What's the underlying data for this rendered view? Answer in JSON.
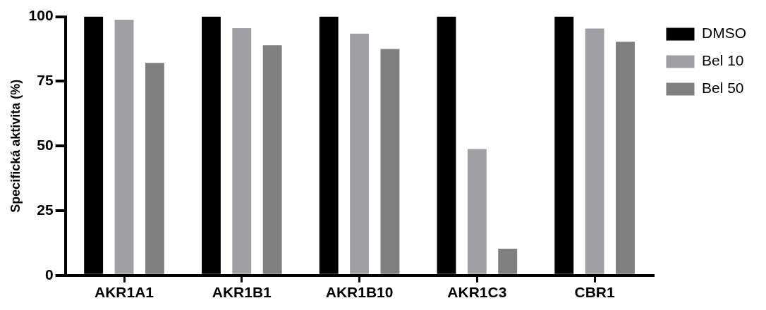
{
  "chart_data": {
    "type": "bar",
    "ylabel": "Specifická aktivita (%)",
    "categories": [
      "AKR1A1",
      "AKR1B1",
      "AKR1B10",
      "AKR1C3",
      "CBR1"
    ],
    "series": [
      {
        "name": "DMSO",
        "color": "#000000",
        "values": [
          100,
          100,
          100,
          100,
          100
        ]
      },
      {
        "name": "Bel 10",
        "color": "#a0a0a4",
        "values": [
          98.8,
          95.5,
          93.4,
          48.8,
          95.4
        ]
      },
      {
        "name": "Bel 50",
        "color": "#808080",
        "values": [
          82.1,
          88.9,
          87.5,
          10.3,
          90.3
        ]
      }
    ],
    "ylim": [
      0,
      100
    ],
    "yticks": [
      0,
      25,
      50,
      75,
      100
    ],
    "grid": false,
    "legend": "top right"
  }
}
